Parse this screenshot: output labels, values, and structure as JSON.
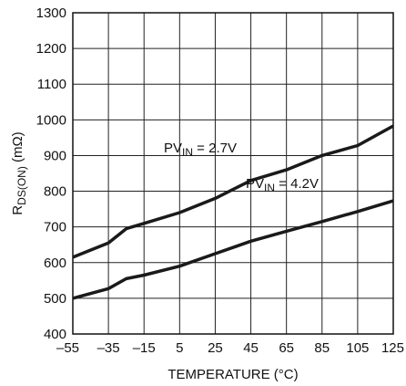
{
  "chart_data": {
    "type": "line",
    "xlabel": "TEMPERATURE (°C)",
    "ylabel": {
      "base": "R",
      "sub": "DS(ON)",
      "unit": " (mΩ)"
    },
    "xlim": [
      -55,
      125
    ],
    "ylim": [
      400,
      1300
    ],
    "x_ticks": [
      -55,
      -35,
      -15,
      5,
      25,
      45,
      65,
      85,
      105,
      125
    ],
    "x_tick_labels": [
      "–55",
      "–35",
      "–15",
      "5",
      "25",
      "45",
      "65",
      "85",
      "105",
      "125"
    ],
    "y_ticks": [
      400,
      500,
      600,
      700,
      800,
      900,
      1000,
      1100,
      1200,
      1300
    ],
    "y_tick_labels": [
      "400",
      "500",
      "600",
      "700",
      "800",
      "900",
      "1000",
      "1100",
      "1200",
      "1300"
    ],
    "grid": true,
    "series": [
      {
        "name": "PVIN = 2.7V",
        "label": {
          "base": "PV",
          "sub": "IN",
          "rest": " = 2.7V"
        },
        "x": [
          -55,
          -35,
          -25,
          -15,
          5,
          25,
          45,
          65,
          85,
          105,
          125
        ],
        "y": [
          615,
          655,
          695,
          710,
          740,
          780,
          830,
          860,
          900,
          928,
          983
        ]
      },
      {
        "name": "PVIN = 4.2V",
        "label": {
          "base": "PV",
          "sub": "IN",
          "rest": " = 4.2V"
        },
        "x": [
          -55,
          -35,
          -25,
          -15,
          5,
          25,
          45,
          65,
          85,
          105,
          125
        ],
        "y": [
          500,
          527,
          555,
          565,
          590,
          625,
          660,
          688,
          715,
          743,
          773
        ]
      }
    ]
  }
}
